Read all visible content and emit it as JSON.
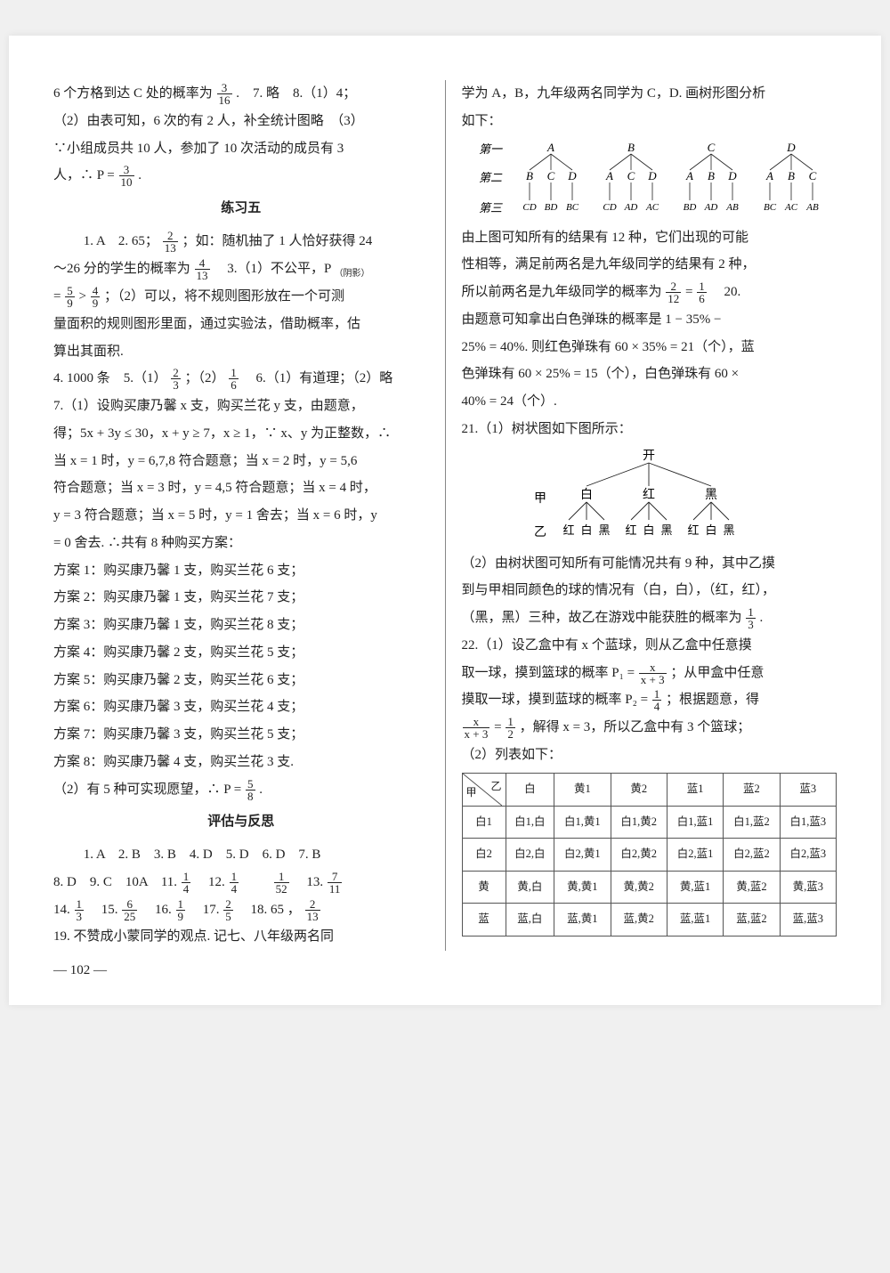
{
  "left": {
    "p1_a": "6 个方格到达 C 处的概率为",
    "p1_b": ".　7. 略　8.（1）4；",
    "p2": "（2）由表可知，6 次的有 2 人，补全统计图略　（3）",
    "p3": "∵小组成员共 10 人，参加了 10 次活动的成员有 3",
    "p4_a": "人，∴ P =",
    "p4_b": ".",
    "sec5_title": "练习五",
    "p5_a": "1. A　2. 65；",
    "p5_b": "；如：随机抽了 1 人恰好获得 24",
    "p6_a": "～26 分的学生的概率为",
    "p6_b": "　3.（1）不公平，P",
    "p6_sub": "（阴影）",
    "p7_a": " =",
    "p7_b": " >",
    "p7_c": "；（2）可以，将不规则图形放在一个可测",
    "p8": "量面积的规则图形里面，通过实验法，借助概率，估",
    "p9": "算出其面积.",
    "p10_a": "4. 1000 条　5.（1）",
    "p10_b": "；（2）",
    "p10_c": "　6.（1）有道理；（2）略",
    "p11": "7.（1）设购买康乃馨 x 支，购买兰花 y 支，由题意，",
    "p12": "得；5x + 3y ≤ 30，x + y ≥ 7，x ≥ 1，∵ x、y 为正整数，∴",
    "p13": "当 x = 1 时，y = 6,7,8 符合题意；当 x = 2 时，y = 5,6",
    "p14": "符合题意；当 x = 3 时，y = 4,5 符合题意；当 x = 4 时，",
    "p15": "y = 3 符合题意；当 x = 5 时，y = 1 舍去；当 x = 6 时，y",
    "p16": " = 0 舍去. ∴共有 8 种购买方案：",
    "plan1": "方案 1：购买康乃馨 1 支，购买兰花 6 支；",
    "plan2": "方案 2：购买康乃馨 1 支，购买兰花 7 支；",
    "plan3": "方案 3：购买康乃馨 1 支，购买兰花 8 支；",
    "plan4": "方案 4：购买康乃馨 2 支，购买兰花 5 支；",
    "plan5": "方案 5：购买康乃馨 2 支，购买兰花 6 支；",
    "plan6": "方案 6：购买康乃馨 3 支，购买兰花 4 支；",
    "plan7": "方案 7：购买康乃馨 3 支，购买兰花 5 支；",
    "plan8": "方案 8：购买康乃馨 4 支，购买兰花 3 支.",
    "p17_a": "（2）有 5 种可实现愿望，∴ P =",
    "p17_b": ".",
    "sec_eval_title": "评估与反思",
    "e1": "1. A　2. B　3. B　4. D　5. D　6. D　7. B",
    "e2_a": "8. D　9. C　10A　11.",
    "e2_b": "　12.",
    "e2_c": "　　",
    "e2_d": "　13.",
    "e3_a": "14.",
    "e3_b": "　15.",
    "e3_c": "　16.",
    "e3_d": "　17.",
    "e3_e": "　18. 65 ，",
    "e4": "19. 不赞成小蒙同学的观点. 记七、八年级两名同"
  },
  "right": {
    "r1": "学为 A，B，九年级两名同学为 C，D. 画树形图分析",
    "r2": "如下：",
    "tree1": {
      "level1_label": "第一",
      "level2_label": "第二",
      "level3_label": "第三",
      "l1": [
        "A",
        "B",
        "C",
        "D"
      ],
      "l2": [
        [
          "B",
          "C",
          "D"
        ],
        [
          "A",
          "C",
          "D"
        ],
        [
          "A",
          "B",
          "D"
        ],
        [
          "A",
          "B",
          "C"
        ]
      ],
      "l3": [
        [
          "CD",
          "BD",
          "BC"
        ],
        [
          "CD",
          "AD",
          "AC"
        ],
        [
          "BD",
          "AD",
          "AB"
        ],
        [
          "BC",
          "AC",
          "AB"
        ]
      ]
    },
    "r3": "由上图可知所有的结果有 12 种，它们出现的可能",
    "r4": "性相等，满足前两名是九年级同学的结果有 2 种，",
    "r5_a": "所以前两名是九年级同学的概率为",
    "r5_b": " =",
    "r5_c": "　20.",
    "r6": "由题意可知拿出白色弹珠的概率是 1 − 35% −",
    "r7": "25% = 40%. 则红色弹珠有 60 × 35% = 21（个），蓝",
    "r8": "色弹珠有 60 × 25% = 15（个），白色弹珠有 60 ×",
    "r9": "40% = 24（个）.",
    "r10": "21.（1）树状图如下图所示：",
    "tree2": {
      "root": "开",
      "jia": "甲",
      "yi": "乙",
      "l1": [
        "白",
        "红",
        "黑"
      ],
      "l2": [
        "红",
        "白",
        "黑",
        "红",
        "白",
        "黑",
        "红",
        "白",
        "黑"
      ]
    },
    "r11": "（2）由树状图可知所有可能情况共有 9 种，其中乙摸",
    "r12": "到与甲相同颜色的球的情况有（白，白），（红，红），",
    "r13_a": "（黑，黑）三种，故乙在游戏中能获胜的概率为",
    "r13_b": ".",
    "r14": "22.（1）设乙盒中有 x 个蓝球，则从乙盒中任意摸",
    "r15_a": "取一球，摸到篮球的概率 P₁ =",
    "r15_b": "；从甲盒中任意",
    "r16_a": "摸取一球，摸到蓝球的概率 P₂ =",
    "r16_b": "；根据题意，得",
    "r17_a": "",
    "r17_b": " =",
    "r17_c": "，解得 x = 3，所以乙盒中有 3 个篮球；",
    "r18": "（2）列表如下：",
    "table": {
      "diag_top": "乙",
      "diag_bot": "甲",
      "cols": [
        "白",
        "黄1",
        "黄2",
        "蓝1",
        "蓝2",
        "蓝3"
      ],
      "rows": [
        {
          "h": "白1",
          "cells": [
            "白1,白",
            "白1,黄1",
            "白1,黄2",
            "白1,蓝1",
            "白1,蓝2",
            "白1,蓝3"
          ]
        },
        {
          "h": "白2",
          "cells": [
            "白2,白",
            "白2,黄1",
            "白2,黄2",
            "白2,蓝1",
            "白2,蓝2",
            "白2,蓝3"
          ]
        },
        {
          "h": "黄",
          "cells": [
            "黄,白",
            "黄,黄1",
            "黄,黄2",
            "黄,蓝1",
            "黄,蓝2",
            "黄,蓝3"
          ]
        },
        {
          "h": "蓝",
          "cells": [
            "蓝,白",
            "蓝,黄1",
            "蓝,黄2",
            "蓝,蓝1",
            "蓝,蓝2",
            "蓝,蓝3"
          ]
        }
      ]
    }
  },
  "fracs": {
    "3_16": {
      "n": "3",
      "d": "16"
    },
    "3_10": {
      "n": "3",
      "d": "10"
    },
    "2_13": {
      "n": "2",
      "d": "13"
    },
    "4_13": {
      "n": "4",
      "d": "13"
    },
    "5_9": {
      "n": "5",
      "d": "9"
    },
    "4_9": {
      "n": "4",
      "d": "9"
    },
    "2_3": {
      "n": "2",
      "d": "3"
    },
    "1_6": {
      "n": "1",
      "d": "6"
    },
    "5_8": {
      "n": "5",
      "d": "8"
    },
    "1_4a": {
      "n": "1",
      "d": "4"
    },
    "1_4b": {
      "n": "1",
      "d": "4"
    },
    "1_52": {
      "n": "1",
      "d": "52"
    },
    "7_11": {
      "n": "7",
      "d": "11"
    },
    "1_3": {
      "n": "1",
      "d": "3"
    },
    "6_25": {
      "n": "6",
      "d": "25"
    },
    "1_9": {
      "n": "1",
      "d": "9"
    },
    "2_5": {
      "n": "2",
      "d": "5"
    },
    "2_12": {
      "n": "2",
      "d": "12"
    },
    "1_6b": {
      "n": "1",
      "d": "6"
    },
    "2_13b": {
      "n": "2",
      "d": "13"
    },
    "1_3b": {
      "n": "1",
      "d": "3"
    },
    "x_x3": {
      "n": "x",
      "d": "x + 3"
    },
    "1_4c": {
      "n": "1",
      "d": "4"
    },
    "x_x3b": {
      "n": "x",
      "d": "x + 3"
    },
    "1_2": {
      "n": "1",
      "d": "2"
    }
  },
  "pagenum": "— 102 —",
  "colors": {
    "text": "#222222",
    "border": "#555555",
    "divider": "#888888",
    "bg": "#ffffff",
    "page_bg": "#f0f0f0"
  }
}
